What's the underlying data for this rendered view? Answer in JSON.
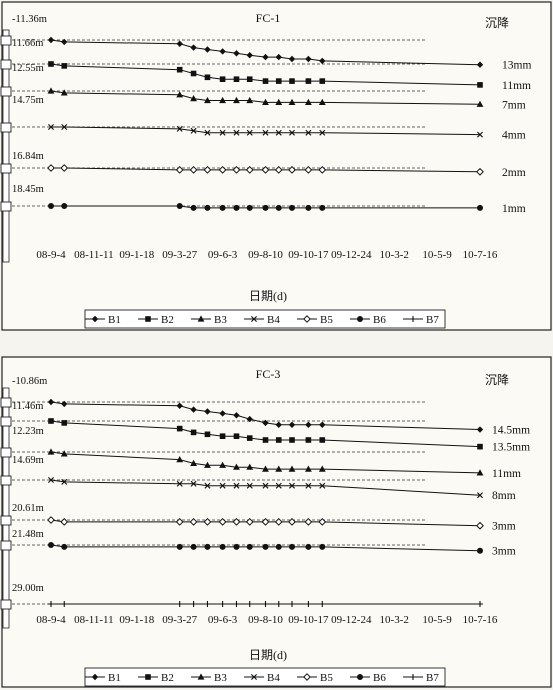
{
  "chart_data": [
    {
      "type": "line",
      "title": "FC-1",
      "xlabel": "日期(d)",
      "right_header": "沉降",
      "x_ticks": [
        "08-9-4",
        "08-11-11",
        "09-1-18",
        "09-3-27",
        "09-6-3",
        "09-8-10",
        "09-10-17",
        "09-12-24",
        "10-3-2",
        "10-5-9",
        "10-7-16"
      ],
      "depth_labels": [
        "-11.36m",
        "11.66m",
        "12.55m",
        "14.75m",
        "16.84m",
        "18.45m"
      ],
      "series": [
        {
          "name": "B1",
          "marker": "diamond",
          "settlement_label": "13mm",
          "x": [
            "08-9-4",
            "08-9-25",
            "09-3-27",
            "09-4-18",
            "09-5-10",
            "09-6-3",
            "09-6-25",
            "09-7-16",
            "09-8-10",
            "09-8-31",
            "09-9-21",
            "09-10-17",
            "09-11-8",
            "10-7-16"
          ],
          "values": [
            0,
            1,
            2,
            4,
            5,
            6,
            7,
            8,
            9,
            9,
            10,
            10,
            11,
            13
          ]
        },
        {
          "name": "B2",
          "marker": "square",
          "settlement_label": "11mm",
          "x": [
            "08-9-4",
            "08-9-25",
            "09-3-27",
            "09-4-18",
            "09-5-10",
            "09-6-3",
            "09-6-25",
            "09-7-16",
            "09-8-10",
            "09-8-31",
            "09-9-21",
            "09-10-17",
            "09-11-8",
            "10-7-16"
          ],
          "values": [
            0,
            1,
            3,
            5,
            7,
            8,
            8,
            8,
            9,
            9,
            9,
            9,
            9,
            11
          ]
        },
        {
          "name": "B3",
          "marker": "triangle",
          "settlement_label": "7mm",
          "x": [
            "08-9-4",
            "08-9-25",
            "09-3-27",
            "09-4-18",
            "09-5-10",
            "09-6-3",
            "09-6-25",
            "09-7-16",
            "09-8-10",
            "09-8-31",
            "09-9-21",
            "09-10-17",
            "09-11-8",
            "10-7-16"
          ],
          "values": [
            0,
            1,
            2,
            4,
            5,
            5,
            5,
            5,
            6,
            6,
            6,
            6,
            6,
            7
          ]
        },
        {
          "name": "B4",
          "marker": "x",
          "settlement_label": "4mm",
          "x": [
            "08-9-4",
            "08-9-25",
            "09-3-27",
            "09-4-18",
            "09-5-10",
            "09-6-3",
            "09-6-25",
            "09-7-16",
            "09-8-10",
            "09-8-31",
            "09-9-21",
            "09-10-17",
            "09-11-8",
            "10-7-16"
          ],
          "values": [
            0,
            0,
            1,
            2,
            3,
            3,
            3,
            3,
            3,
            3,
            3,
            3,
            3,
            4
          ]
        },
        {
          "name": "B5",
          "marker": "open-diamond",
          "settlement_label": "2mm",
          "x": [
            "08-9-4",
            "08-9-25",
            "09-3-27",
            "09-4-18",
            "09-5-10",
            "09-6-3",
            "09-6-25",
            "09-7-16",
            "09-8-10",
            "09-8-31",
            "09-9-21",
            "09-10-17",
            "09-11-8",
            "10-7-16"
          ],
          "values": [
            0,
            0,
            1,
            1,
            1,
            1,
            1,
            1,
            1,
            1,
            1,
            1,
            1,
            2
          ]
        },
        {
          "name": "B6",
          "marker": "circle",
          "settlement_label": "1mm",
          "x": [
            "08-9-4",
            "08-9-25",
            "09-3-27",
            "09-4-18",
            "09-5-10",
            "09-6-3",
            "09-6-25",
            "09-7-16",
            "09-8-10",
            "09-8-31",
            "09-9-21",
            "09-10-17",
            "09-11-8",
            "10-7-16"
          ],
          "values": [
            0,
            0,
            0,
            1,
            1,
            1,
            1,
            1,
            1,
            1,
            1,
            1,
            1,
            1
          ]
        }
      ],
      "legend": [
        "B1",
        "B2",
        "B3",
        "B4",
        "B5",
        "B6",
        "B7"
      ]
    },
    {
      "type": "line",
      "title": "FC-3",
      "xlabel": "日期(d)",
      "right_header": "沉降",
      "x_ticks": [
        "08-9-4",
        "08-11-11",
        "09-1-18",
        "09-3-27",
        "09-6-3",
        "09-8-10",
        "09-10-17",
        "09-12-24",
        "10-3-2",
        "10-5-9",
        "10-7-16"
      ],
      "depth_labels": [
        "-10.86m",
        "11.46m",
        "12.23m",
        "14.69m",
        "20.61m",
        "21.48m",
        "29.00m"
      ],
      "series": [
        {
          "name": "B1",
          "marker": "diamond",
          "settlement_label": "14.5mm",
          "x": [
            "08-9-4",
            "08-9-25",
            "09-3-27",
            "09-4-18",
            "09-5-10",
            "09-6-3",
            "09-6-25",
            "09-7-16",
            "09-8-10",
            "09-8-31",
            "09-9-21",
            "09-10-17",
            "09-11-8",
            "10-7-16"
          ],
          "values": [
            0,
            1,
            2,
            4,
            5,
            6,
            7,
            9,
            11,
            12,
            12,
            12,
            12,
            14.5
          ]
        },
        {
          "name": "B2",
          "marker": "square",
          "settlement_label": "13.5mm",
          "x": [
            "08-9-4",
            "08-9-25",
            "09-3-27",
            "09-4-18",
            "09-5-10",
            "09-6-3",
            "09-6-25",
            "09-7-16",
            "09-8-10",
            "09-8-31",
            "09-9-21",
            "09-10-17",
            "09-11-8",
            "10-7-16"
          ],
          "values": [
            0,
            1,
            4,
            6,
            7,
            8,
            8,
            9,
            10,
            10,
            10,
            10,
            10,
            13.5
          ]
        },
        {
          "name": "B3",
          "marker": "triangle",
          "settlement_label": "11mm",
          "x": [
            "08-9-4",
            "08-9-25",
            "09-3-27",
            "09-4-18",
            "09-5-10",
            "09-6-3",
            "09-6-25",
            "09-7-16",
            "09-8-10",
            "09-8-31",
            "09-9-21",
            "09-10-17",
            "09-11-8",
            "10-7-16"
          ],
          "values": [
            0,
            1,
            4,
            6,
            7,
            7,
            8,
            8,
            9,
            9,
            9,
            9,
            9,
            11
          ]
        },
        {
          "name": "B4",
          "marker": "x",
          "settlement_label": "8mm",
          "x": [
            "08-9-4",
            "08-9-25",
            "09-3-27",
            "09-4-18",
            "09-5-10",
            "09-6-3",
            "09-6-25",
            "09-7-16",
            "09-8-10",
            "09-8-31",
            "09-9-21",
            "09-10-17",
            "09-11-8",
            "10-7-16"
          ],
          "values": [
            0,
            1,
            2,
            2,
            3,
            3,
            3,
            3,
            3,
            3,
            3,
            3,
            3,
            8
          ]
        },
        {
          "name": "B5",
          "marker": "open-diamond",
          "settlement_label": "3mm",
          "x": [
            "08-9-4",
            "08-9-25",
            "09-3-27",
            "09-4-18",
            "09-5-10",
            "09-6-3",
            "09-6-25",
            "09-7-16",
            "09-8-10",
            "09-8-31",
            "09-9-21",
            "09-10-17",
            "09-11-8",
            "10-7-16"
          ],
          "values": [
            0,
            1,
            1,
            1,
            1,
            1,
            1,
            1,
            1,
            1,
            1,
            1,
            1,
            3
          ]
        },
        {
          "name": "B6",
          "marker": "circle",
          "settlement_label": "3mm",
          "x": [
            "08-9-4",
            "08-9-25",
            "09-3-27",
            "09-4-18",
            "09-5-10",
            "09-6-3",
            "09-6-25",
            "09-7-16",
            "09-8-10",
            "09-8-31",
            "09-9-21",
            "09-10-17",
            "09-11-8",
            "10-7-16"
          ],
          "values": [
            0,
            1,
            1,
            1,
            1,
            1,
            1,
            1,
            1,
            1,
            1,
            1,
            1,
            3
          ]
        },
        {
          "name": "B7",
          "marker": "plus",
          "x": [
            "08-9-4",
            "08-9-25",
            "09-3-27",
            "09-4-18",
            "09-5-10",
            "09-6-3",
            "09-6-25",
            "09-7-16",
            "09-8-10",
            "09-8-31",
            "09-9-21",
            "09-10-17",
            "09-11-8",
            "10-7-16"
          ],
          "values": [
            0,
            0,
            0,
            0,
            0,
            0,
            0,
            0,
            0,
            0,
            0,
            0,
            0,
            0
          ]
        }
      ],
      "legend": [
        "B1",
        "B2",
        "B3",
        "B4",
        "B5",
        "B6",
        "B7"
      ]
    }
  ]
}
